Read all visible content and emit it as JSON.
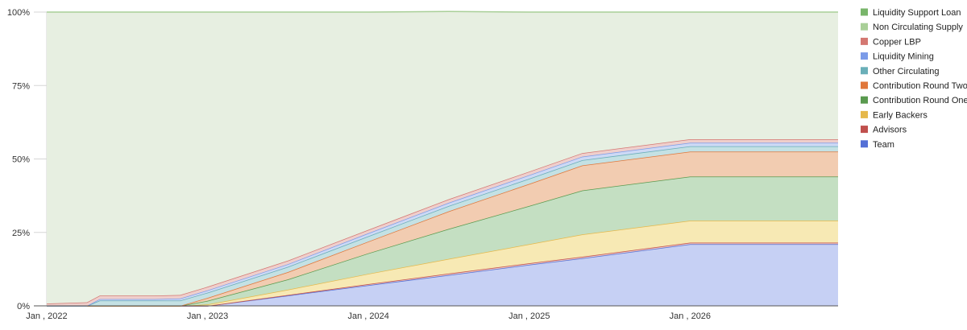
{
  "chart_data": {
    "type": "area",
    "stacked": true,
    "y_format": "percent",
    "x": [
      2022.0,
      2022.25,
      2022.33,
      2022.67,
      2022.83,
      2023.0,
      2023.5,
      2024.0,
      2024.5,
      2025.0,
      2025.33,
      2026.0,
      2026.92
    ],
    "x_tick_labels": [
      {
        "x": 2022,
        "label": "Jan , 2022"
      },
      {
        "x": 2023,
        "label": "Jan , 2023"
      },
      {
        "x": 2024,
        "label": "Jan , 2024"
      },
      {
        "x": 2025,
        "label": "Jan , 2025"
      },
      {
        "x": 2026,
        "label": "Jan , 2026"
      }
    ],
    "y_ticks": [
      0,
      25,
      50,
      75,
      100
    ],
    "y_tick_labels": [
      "0%",
      "25%",
      "50%",
      "75%",
      "100%"
    ],
    "ylim": [
      0,
      100
    ],
    "grid": true,
    "legend_position": "right",
    "series": [
      {
        "name": "Team",
        "color": "#5470d6",
        "fill": "#c6d0f4",
        "values": [
          0,
          0,
          0,
          0,
          0,
          0,
          3.5,
          7,
          10.5,
          14,
          16.2,
          21,
          21
        ]
      },
      {
        "name": "Advisors",
        "color": "#c0504d",
        "fill": "#ebc7c5",
        "values": [
          0,
          0,
          0,
          0,
          0,
          0,
          0.2,
          0.4,
          0.5,
          0.5,
          0.5,
          0.5,
          0.5
        ]
      },
      {
        "name": "Early Backers",
        "color": "#e5b84b",
        "fill": "#f7e9b4",
        "values": [
          0,
          0,
          0,
          0,
          0,
          0.5,
          1.8,
          3.5,
          5,
          6.5,
          7.6,
          7.5,
          7.5
        ]
      },
      {
        "name": "Contribution Round One",
        "color": "#5a9a4f",
        "fill": "#c4dfc2",
        "values": [
          0,
          0,
          0,
          0,
          0,
          1.2,
          3.5,
          7,
          10.2,
          13,
          15,
          15,
          15
        ]
      },
      {
        "name": "Contribution Round Two",
        "color": "#e0773a",
        "fill": "#f2ccb1",
        "values": [
          0,
          0,
          0,
          0,
          0,
          1,
          2.5,
          4,
          6,
          7.5,
          8.5,
          8.5,
          8.5
        ]
      },
      {
        "name": "Other Circulating",
        "color": "#6aafb8",
        "fill": "#c4e1e4",
        "values": [
          0,
          0,
          1.8,
          1.8,
          1.8,
          1.8,
          1.8,
          1.8,
          1.8,
          1.8,
          1.8,
          1.8,
          1.8
        ]
      },
      {
        "name": "Liquidity Mining",
        "color": "#7b9be8",
        "fill": "#cdd9f5",
        "values": [
          0,
          0,
          0.5,
          0.5,
          0.7,
          0.8,
          0.9,
          1,
          1.1,
          1.2,
          1.2,
          1.2,
          1.2
        ]
      },
      {
        "name": "Copper LBP",
        "color": "#d47872",
        "fill": "#efcfcc",
        "values": [
          0.8,
          1.2,
          1.2,
          1.2,
          1.2,
          1.2,
          1.2,
          1.2,
          1.2,
          1.2,
          1.2,
          1.2,
          1.2
        ]
      },
      {
        "name": "Non Circulating Supply",
        "color": "#a9cf98",
        "fill": "#e7efe1",
        "values": [
          99.2,
          98.8,
          96.5,
          96.5,
          96.3,
          93.5,
          84.6,
          74.1,
          63.9,
          54.3,
          48.0,
          43.3,
          43.3
        ]
      },
      {
        "name": "Liquidity Support Loan",
        "color": "#78b56a",
        "fill": "#d6e9cd",
        "values": [
          0,
          0,
          0,
          0,
          0,
          0,
          0,
          0,
          0,
          0,
          0,
          0,
          0
        ]
      }
    ],
    "legend_order": [
      "Liquidity Support Loan",
      "Non Circulating Supply",
      "Copper LBP",
      "Liquidity Mining",
      "Other Circulating",
      "Contribution Round Two",
      "Contribution Round One",
      "Early Backers",
      "Advisors",
      "Team"
    ]
  }
}
